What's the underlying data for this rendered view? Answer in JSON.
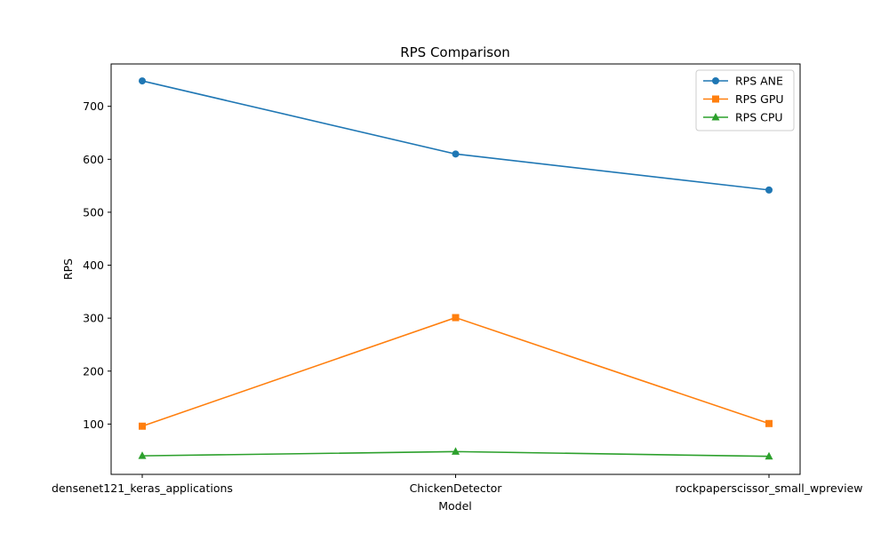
{
  "chart_data": {
    "type": "line",
    "title": "RPS Comparison",
    "xlabel": "Model",
    "ylabel": "RPS",
    "categories": [
      "densenet121_keras_applications",
      "ChickenDetector",
      "rockpaperscissor_small_wpreview"
    ],
    "ylim": [
      5,
      780
    ],
    "yticks": [
      100,
      200,
      300,
      400,
      500,
      600,
      700
    ],
    "grid": false,
    "legend_position": "top-right",
    "series": [
      {
        "name": "RPS ANE",
        "values": [
          748,
          610,
          542
        ],
        "color": "#1f77b4",
        "marker": "circle"
      },
      {
        "name": "RPS GPU",
        "values": [
          96,
          301,
          101
        ],
        "color": "#ff7f0e",
        "marker": "square"
      },
      {
        "name": "RPS CPU",
        "values": [
          40,
          48,
          39
        ],
        "color": "#2ca02c",
        "marker": "triangle"
      }
    ]
  }
}
